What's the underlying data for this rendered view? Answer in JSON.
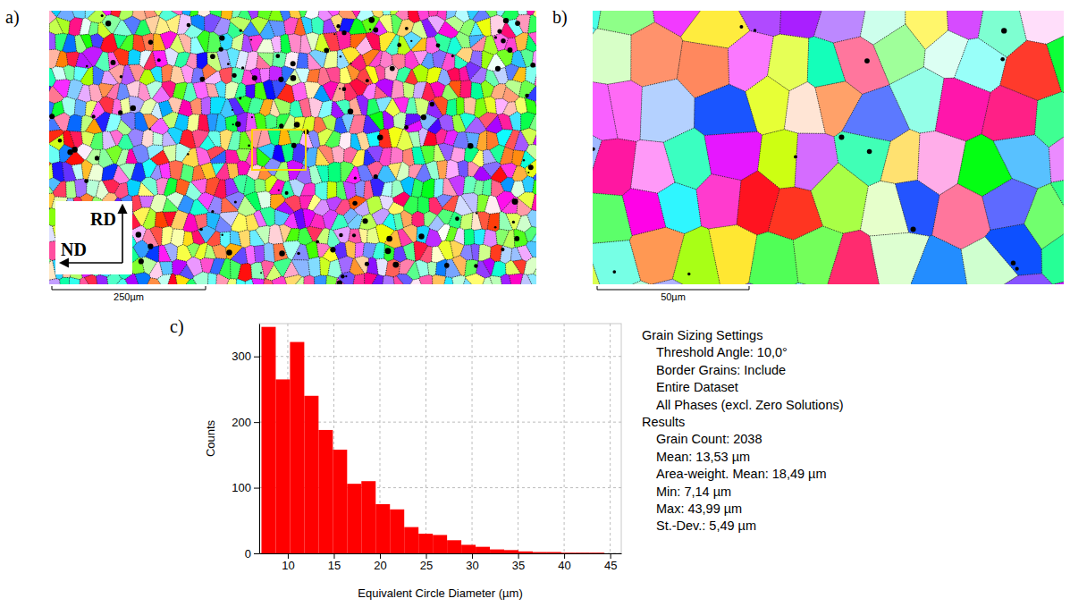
{
  "panels": {
    "a": {
      "label": "a)",
      "axes": {
        "up": "RD",
        "left": "ND"
      },
      "scale_bar": "250µm"
    },
    "b": {
      "label": "b)",
      "scale_bar": "50µm"
    },
    "c": {
      "label": "c)"
    }
  },
  "chart_data": {
    "type": "histogram",
    "x_label": "Equivalent Circle Diameter (µm)",
    "y_label": "Counts",
    "bins": [
      7.14,
      8.69,
      10.24,
      11.79,
      13.34,
      14.89,
      16.44,
      17.99,
      19.54,
      21.09,
      22.64,
      24.19,
      25.74,
      27.29,
      28.84,
      30.39,
      31.94,
      33.49,
      35.04,
      36.59,
      38.14,
      39.69,
      41.24,
      42.79,
      44.34
    ],
    "counts": [
      345,
      265,
      322,
      240,
      188,
      158,
      106,
      110,
      75,
      67,
      40,
      30,
      28,
      20,
      13,
      10,
      6,
      5,
      3,
      2,
      2,
      1,
      1,
      1
    ],
    "color": "#ff0000",
    "xlim": [
      6.9,
      46.2
    ],
    "ylim": [
      0,
      350
    ],
    "xticks": [
      10,
      15,
      20,
      25,
      30,
      35,
      40,
      45
    ],
    "yticks": [
      0,
      100,
      200,
      300
    ],
    "grid": true,
    "annotations": [
      {
        "heading": "Grain Sizing Settings",
        "lines": [
          "Threshold Angle: 10,0°",
          "Border Grains: Include",
          "Entire Dataset",
          "All Phases (excl. Zero Solutions)"
        ]
      },
      {
        "heading": "Results",
        "lines": [
          "Grain Count: 2038",
          "Mean: 13,53 µm",
          "Area-weight. Mean: 18,49 µm",
          "Min: 7,14 µm",
          "Max: 43,99 µm",
          "St.-Dev.: 5,49 µm"
        ]
      }
    ]
  }
}
